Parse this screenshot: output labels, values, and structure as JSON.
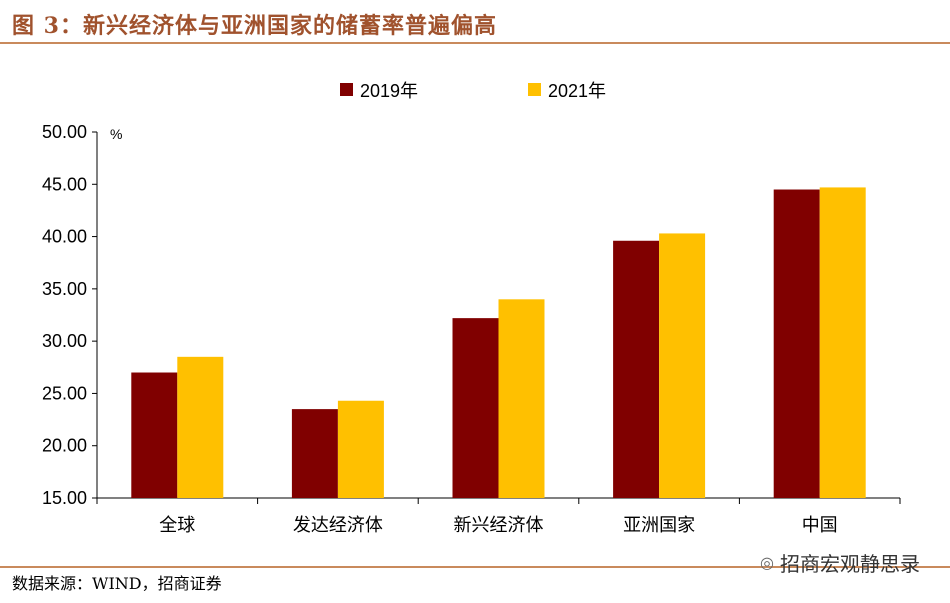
{
  "figure": {
    "title": "图 3：新兴经济体与亚洲国家的储蓄率普遍偏高",
    "source": "数据来源：WIND，招商证券",
    "watermark": "招商宏观静思录"
  },
  "colors": {
    "series_2019": "#800000",
    "series_2021": "#ffc000",
    "title": "#a0522d",
    "rule": "#c98a5c"
  },
  "chart_data": {
    "type": "bar",
    "title": "",
    "xlabel": "",
    "ylabel": "",
    "unit_label": "%",
    "categories": [
      "全球",
      "发达经济体",
      "新兴经济体",
      "亚洲国家",
      "中国"
    ],
    "series": [
      {
        "name": "2019年",
        "values": [
          27.0,
          23.5,
          32.2,
          39.6,
          44.5
        ]
      },
      {
        "name": "2021年",
        "values": [
          28.5,
          24.3,
          34.0,
          40.3,
          44.7
        ]
      }
    ],
    "ylim": [
      15,
      50
    ],
    "yticks": [
      "15.00",
      "20.00",
      "25.00",
      "30.00",
      "35.00",
      "40.00",
      "45.00",
      "50.00"
    ],
    "grid": false,
    "legend_position": "top-center"
  }
}
